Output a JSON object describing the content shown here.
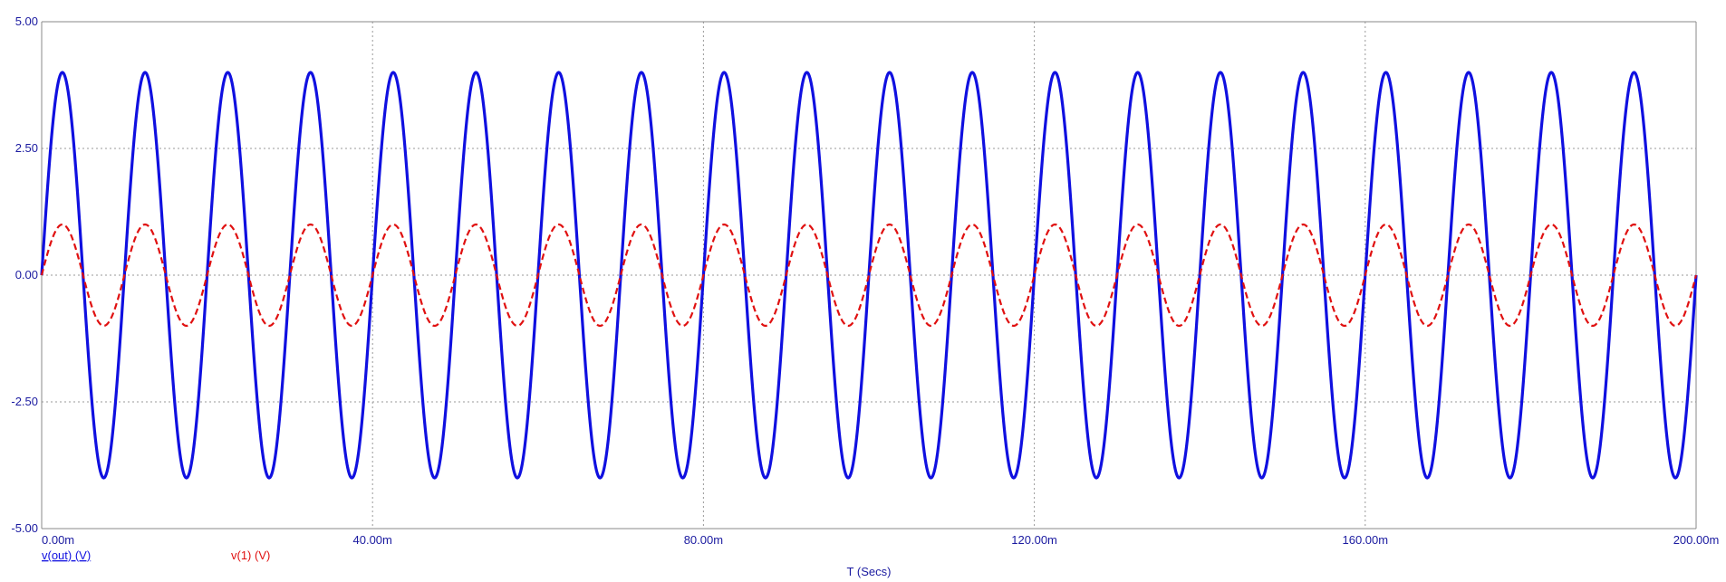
{
  "chart_data": {
    "type": "line",
    "xlabel": "T (Secs)",
    "x_ticks": [
      "0.00m",
      "40.00m",
      "80.00m",
      "120.00m",
      "160.00m",
      "200.00m"
    ],
    "x_tick_values": [
      0,
      0.04,
      0.08,
      0.12,
      0.16,
      0.2
    ],
    "xlim": [
      0,
      0.2
    ],
    "y_ticks": [
      "5.00",
      "2.50",
      "0.00",
      "-2.50",
      "-5.00"
    ],
    "y_tick_values": [
      5,
      2.5,
      0,
      -2.5,
      -5
    ],
    "ylim": [
      -5,
      5
    ],
    "grid": true,
    "series": [
      {
        "name": "v(out) (V)",
        "color": "#1010e0",
        "style": "solid",
        "amplitude": 4.0,
        "frequency_hz": 100,
        "phase": 0
      },
      {
        "name": "v(1) (V)",
        "color": "#e01010",
        "style": "dashed",
        "amplitude": 1.0,
        "frequency_hz": 100,
        "phase": 0
      }
    ]
  }
}
